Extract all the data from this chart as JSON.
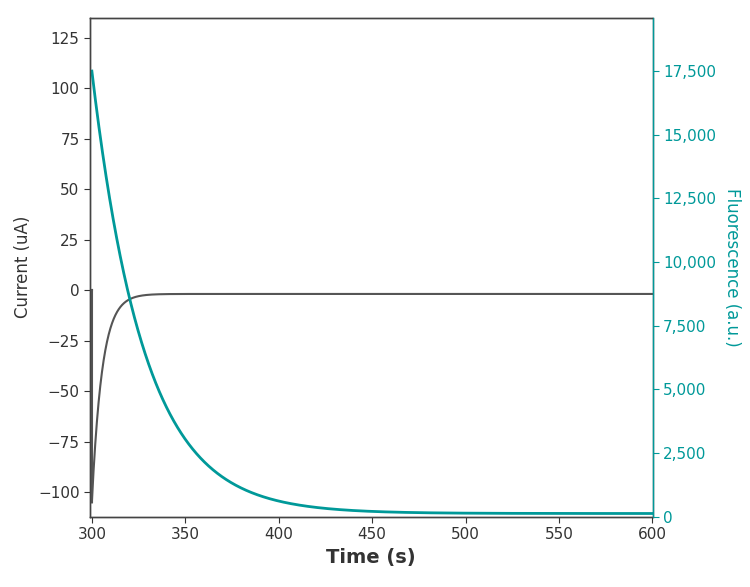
{
  "title": "",
  "xlabel": "Time (s)",
  "ylabel_left": "Current (uA)",
  "ylabel_right": "Fluorescence (a.u.)",
  "left_color": "#555555",
  "right_color": "#009999",
  "xlim": [
    299.0,
    600
  ],
  "ylim_left": [
    -112,
    135
  ],
  "ylim_right": [
    0,
    19600
  ],
  "xticks": [
    300,
    350,
    400,
    450,
    500,
    550,
    600
  ],
  "yticks_left": [
    -100,
    -75,
    -50,
    -25,
    0,
    25,
    50,
    75,
    100,
    125
  ],
  "yticks_right": [
    0,
    2500,
    5000,
    7500,
    10000,
    12500,
    15000,
    17500
  ],
  "current_spike_value": -105,
  "current_decay_tau": 5.5,
  "current_steady": -1.8,
  "fluorescence_peak": 17500,
  "fluorescence_tau": 28,
  "fluorescence_baseline": 120,
  "background_color": "#ffffff",
  "spine_color": "#444444",
  "linewidth_current": 1.5,
  "linewidth_fluorescence": 2.0,
  "tick_labelsize": 11,
  "xlabel_fontsize": 14,
  "ylabel_fontsize": 12
}
